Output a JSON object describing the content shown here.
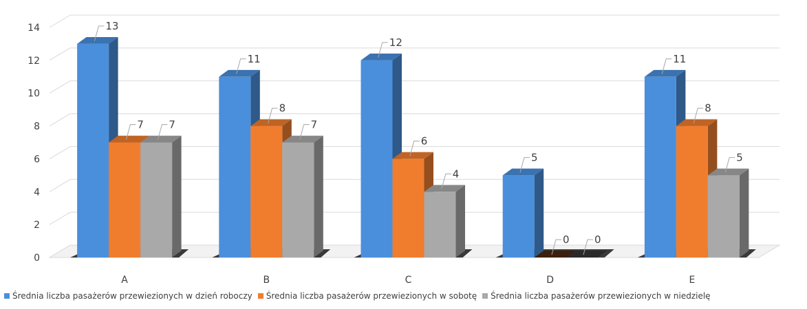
{
  "chart_data": {
    "type": "bar",
    "categories": [
      "A",
      "B",
      "C",
      "D",
      "E"
    ],
    "series": [
      {
        "name": "Średnia liczba pasażerów przewiezionych w dzień roboczy",
        "values": [
          13,
          11,
          12,
          5,
          11
        ],
        "labels": [
          "13",
          "11",
          "12",
          "5",
          "11"
        ],
        "color": "#4a8fdc"
      },
      {
        "name": "Średnia liczba pasażerów przewiezionych w sobotę",
        "values": [
          7,
          8,
          6,
          0,
          8
        ],
        "labels": [
          "7",
          "8",
          "6",
          "0",
          "8"
        ],
        "color": "#f07d2e"
      },
      {
        "name": "Średnia liczba pasażerów przewiezionych w niedzielę",
        "values": [
          7,
          7,
          4,
          0,
          5
        ],
        "labels": [
          "7",
          "7",
          "4",
          "0",
          "5"
        ],
        "color": "#a9a9a9"
      }
    ],
    "y_ticks": [
      "0",
      "2",
      "4",
      "6",
      "8",
      "10",
      "12",
      "14"
    ],
    "ylim": [
      0,
      14
    ],
    "grid": true,
    "legend_position": "bottom",
    "style": "3d-clustered-column"
  }
}
